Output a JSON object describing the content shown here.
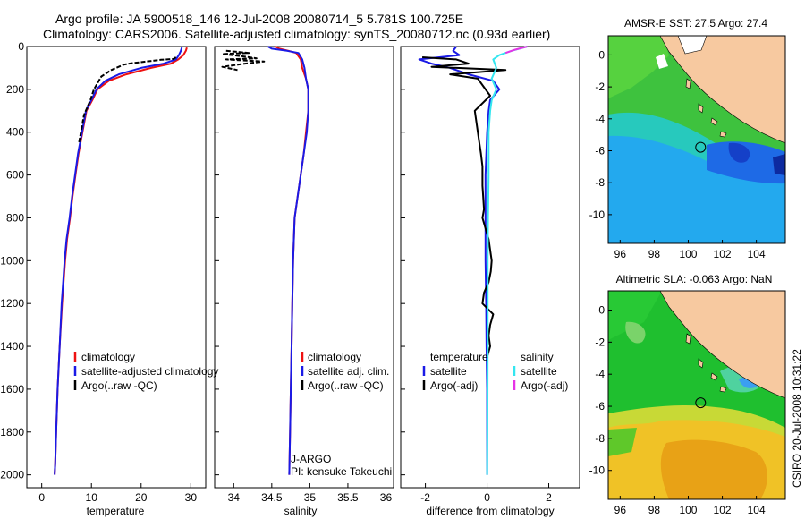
{
  "header": {
    "line1": "Argo profile: JA 5900518_146 12-Jul-2008 20080714_5 5.781S 100.725E",
    "line2": "Climatology: CARS2006. Satellite-adjusted climatology: synTS_20080712.nc (0.93d earlier)"
  },
  "credit": "CSIRO 20-Jul-2008 10:31:22",
  "colors": {
    "climatology": "#ee1111",
    "satellite": "#1a1ae6",
    "argo": "#000000",
    "salinity_satellite": "#33e6f0",
    "salinity_argo": "#e633e6",
    "land": "#f7c9a0"
  },
  "chart_data": [
    {
      "type": "line",
      "id": "temperature-profile",
      "xlabel": "temperature",
      "ylabel": "",
      "xlim": [
        -3,
        33
      ],
      "ylim": [
        2060,
        0
      ],
      "xticks": [
        0,
        10,
        20,
        30
      ],
      "yticks": [
        0,
        200,
        400,
        600,
        800,
        1000,
        1200,
        1400,
        1600,
        1800,
        2000
      ],
      "legend": [
        "climatology",
        "satellite-adjusted climatology",
        "Argo(..raw -QC)"
      ],
      "legend_placement": "lower-right",
      "series": [
        {
          "name": "climatology",
          "color": "#ee1111",
          "x": [
            29.2,
            29.0,
            28.5,
            27.5,
            26.0,
            22.0,
            17.0,
            13.5,
            11.2,
            10.2,
            9.0,
            8.2,
            7.4,
            6.8,
            6.2,
            5.7,
            5.1,
            4.7,
            4.4,
            4.1,
            3.6,
            3.2,
            2.9,
            2.7,
            2.6
          ],
          "y": [
            5,
            20,
            40,
            60,
            80,
            100,
            130,
            160,
            200,
            250,
            300,
            400,
            500,
            600,
            700,
            800,
            900,
            1000,
            1100,
            1200,
            1400,
            1600,
            1800,
            1950,
            2000
          ]
        },
        {
          "name": "satellite-adjusted climatology",
          "color": "#1a1ae6",
          "x": [
            28.2,
            28.0,
            27.6,
            27.0,
            24.5,
            20.0,
            15.5,
            12.8,
            11.0,
            10.0,
            8.9,
            8.1,
            7.3,
            6.7,
            6.1,
            5.6,
            5.0,
            4.6,
            4.3,
            4.0,
            3.6,
            3.2,
            2.9,
            2.7,
            2.6
          ],
          "y": [
            5,
            20,
            40,
            60,
            80,
            100,
            130,
            160,
            200,
            250,
            300,
            400,
            500,
            600,
            700,
            800,
            900,
            1000,
            1100,
            1200,
            1400,
            1600,
            1800,
            1950,
            2000
          ]
        },
        {
          "name": "Argo(..raw -QC)",
          "color": "#000000",
          "style": "dashed",
          "x": [
            27.0,
            26.5,
            24.0,
            21.0,
            18.0,
            16.5,
            14.0,
            12.0,
            10.5,
            9.8,
            8.5,
            7.5
          ],
          "y": [
            50,
            58,
            62,
            70,
            78,
            85,
            110,
            140,
            200,
            250,
            320,
            450
          ]
        }
      ]
    },
    {
      "type": "line",
      "id": "salinity-profile",
      "xlabel": "salinity",
      "ylabel": "",
      "xlim": [
        33.75,
        36.1
      ],
      "ylim": [
        2060,
        0
      ],
      "xticks": [
        34,
        34.5,
        35,
        35.5,
        36
      ],
      "legend": [
        "climatology",
        "satellite adj. clim.",
        "Argo(..raw -QC)"
      ],
      "legend_placement": "lower-right",
      "annotations": [
        "J-ARGO",
        "PI: kensuke Takeuchi"
      ],
      "series": [
        {
          "name": "climatology",
          "color": "#ee1111",
          "x": [
            34.55,
            34.6,
            34.72,
            34.82,
            34.88,
            34.9,
            34.95,
            34.98,
            34.98,
            34.95,
            34.92,
            34.88,
            34.84,
            34.8,
            34.78,
            34.77,
            34.76,
            34.75,
            34.74,
            34.73
          ],
          "y": [
            0,
            10,
            20,
            30,
            60,
            100,
            150,
            200,
            300,
            400,
            500,
            600,
            700,
            800,
            1000,
            1200,
            1400,
            1600,
            1800,
            2000
          ]
        },
        {
          "name": "satellite adj. clim.",
          "color": "#1a1ae6",
          "x": [
            34.45,
            34.5,
            34.7,
            34.85,
            34.9,
            34.93,
            34.95,
            34.98,
            34.98,
            34.96,
            34.92,
            34.88,
            34.84,
            34.8,
            34.78,
            34.77,
            34.76,
            34.75,
            34.74,
            34.73
          ],
          "y": [
            0,
            10,
            20,
            30,
            60,
            100,
            150,
            200,
            300,
            400,
            500,
            600,
            700,
            800,
            1000,
            1200,
            1400,
            1600,
            1800,
            2000
          ]
        },
        {
          "name": "Argo(..raw -QC)",
          "color": "#000000",
          "style": "dashed",
          "x": [
            33.9,
            34.2,
            33.85,
            34.1,
            34.3,
            33.9,
            34.4,
            34.15,
            33.85,
            34.05
          ],
          "y": [
            20,
            30,
            35,
            45,
            55,
            60,
            70,
            80,
            95,
            110
          ]
        }
      ]
    },
    {
      "type": "line",
      "id": "difference-profile",
      "xlabel": "difference from climatology",
      "ylabel": "",
      "xlim": [
        -2.8,
        3.0
      ],
      "ylim": [
        2060,
        0
      ],
      "xticks": [
        -2,
        0,
        2
      ],
      "legend_groups": [
        {
          "title": "temperature",
          "entries": [
            "satellite",
            "Argo(-adj)"
          ]
        },
        {
          "title": "salinity",
          "entries": [
            "satellite",
            "Argo(-adj)"
          ]
        }
      ],
      "legend_placement": "lower-center",
      "series": [
        {
          "name": "satellite",
          "group": "temperature",
          "color": "#1a1ae6",
          "x": [
            -1.0,
            -1.1,
            -0.9,
            -2.2,
            -1.8,
            -1.2,
            -0.6,
            0.2,
            0.4,
            0.1,
            0.05,
            0.0,
            -0.05,
            -0.05,
            -0.05,
            -0.03,
            -0.02,
            0,
            0,
            0
          ],
          "y": [
            0,
            20,
            40,
            60,
            80,
            100,
            130,
            160,
            200,
            250,
            300,
            400,
            600,
            800,
            1000,
            1200,
            1400,
            1600,
            1800,
            2000
          ]
        },
        {
          "name": "Argo(-adj)",
          "group": "temperature",
          "color": "#000000",
          "x": [
            -2.1,
            -1.0,
            -0.6,
            -1.8,
            0.6,
            -1.2,
            -0.3,
            -0.1,
            0.1,
            -0.4,
            -0.3,
            -0.25,
            -0.2,
            -0.15,
            -0.15,
            -0.1,
            -0.15,
            0.05,
            0.1,
            0.15,
            0.12,
            0.05,
            -0.1,
            -0.15,
            0.2,
            0.1,
            0.05,
            0.1,
            0.0
          ],
          "y": [
            50,
            60,
            80,
            95,
            110,
            130,
            150,
            190,
            230,
            300,
            400,
            450,
            500,
            560,
            650,
            760,
            800,
            900,
            950,
            1000,
            1050,
            1100,
            1150,
            1200,
            1250,
            1300,
            1350,
            1400,
            1450
          ]
        },
        {
          "name": "satellite",
          "group": "salinity",
          "color": "#33e6f0",
          "x": [
            1.3,
            0.8,
            0.4,
            0.2,
            0.3,
            0.15,
            0.3,
            0.15,
            0.1,
            0.05,
            0.05,
            0.03,
            0.02,
            0.02,
            0.01,
            0.0
          ],
          "y": [
            0,
            20,
            40,
            60,
            100,
            150,
            200,
            250,
            300,
            400,
            600,
            800,
            1000,
            1400,
            1800,
            2000
          ]
        },
        {
          "name": "Argo(-adj)",
          "group": "salinity",
          "color": "#e633e6",
          "x": [
            1.3,
            0.9,
            0.6
          ],
          "y": [
            0,
            15,
            30
          ]
        }
      ]
    },
    {
      "type": "heatmap",
      "id": "sst-map",
      "title": "AMSR-E SST: 27.5 Argo: 27.4",
      "xlim": [
        95.3,
        105.7
      ],
      "ylim": [
        -11.8,
        1.2
      ],
      "xticks": [
        96,
        98,
        100,
        102,
        104
      ],
      "yticks": [
        0,
        -2,
        -4,
        -6,
        -8,
        -10
      ],
      "marker": {
        "lon": 100.725,
        "lat": -5.781
      }
    },
    {
      "type": "heatmap",
      "id": "sla-map",
      "title": "Altimetric SLA: -0.063 Argo: NaN",
      "xlim": [
        95.3,
        105.7
      ],
      "ylim": [
        -11.8,
        1.2
      ],
      "xticks": [
        96,
        98,
        100,
        102,
        104
      ],
      "yticks": [
        0,
        -2,
        -4,
        -6,
        -8,
        -10
      ],
      "marker": {
        "lon": 100.725,
        "lat": -5.781
      }
    }
  ]
}
